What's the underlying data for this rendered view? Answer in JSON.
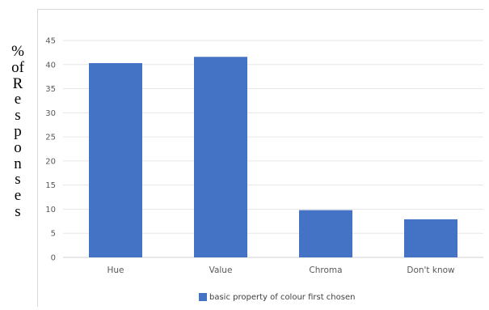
{
  "chart_data": {
    "type": "bar",
    "categories": [
      "Hue",
      "Value",
      "Chroma",
      "Don't know"
    ],
    "series": [
      {
        "name": "basic property of colour first chosen",
        "values": [
          40.3,
          41.6,
          9.8,
          7.9
        ],
        "color": "#4472c4"
      }
    ],
    "ylabel": "% of Responses",
    "ylabel_stacked": "%\nof\nR\ne\ns\np\no\nn\ns\ne\ns",
    "ylim": [
      0,
      45
    ],
    "yticks": [
      0,
      5,
      10,
      15,
      20,
      25,
      30,
      35,
      40,
      45
    ],
    "grid": true,
    "legend_position": "bottom"
  }
}
